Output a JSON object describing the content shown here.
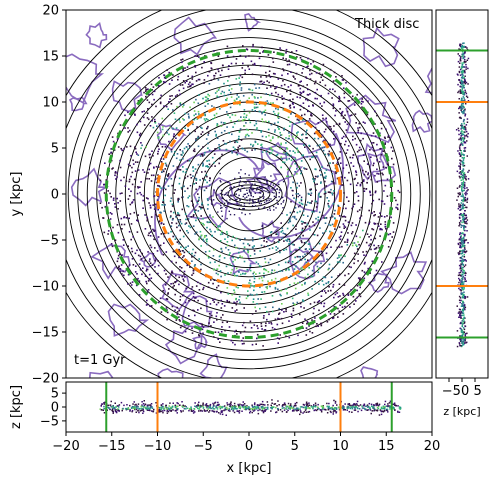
{
  "chart_data": [
    {
      "type": "scatter",
      "panel": "main-xy",
      "title": "",
      "annotation_top": "Thick disc",
      "annotation_bottom": "t=1 Gyr",
      "xlabel": "x [kpc]",
      "ylabel": "y [kpc]",
      "xlim": [
        -20,
        20
      ],
      "ylim": [
        -20,
        20
      ],
      "xticks": [
        "−20",
        "−15",
        "−10",
        "−5",
        "0",
        "5",
        "10",
        "15",
        "20"
      ],
      "yticks": [
        "20",
        "15",
        "10",
        "5",
        "0",
        "−5",
        "−10",
        "−15",
        "−20"
      ],
      "circles": [
        {
          "name": "inner",
          "radius": 10,
          "color": "#ff7f0e",
          "style": "dashed"
        },
        {
          "name": "outer",
          "radius": 15.6,
          "color": "#2ca02c",
          "style": "dashed"
        }
      ],
      "disc_extent_kpc": 16.5,
      "bar_half_length_kpc": 4,
      "potential_contour_color": "#000000",
      "gas_contour_color": "#8a6bbf"
    },
    {
      "type": "scatter",
      "panel": "side-zy",
      "xlabel": "z [kpc]",
      "xlim": [
        -10,
        10
      ],
      "ylim": [
        -20,
        20
      ],
      "xticks": [
        "−5",
        "0",
        "5"
      ],
      "hlines": [
        {
          "value": 15.6,
          "color": "#2ca02c"
        },
        {
          "value": 10,
          "color": "#ff7f0e"
        },
        {
          "value": -10,
          "color": "#ff7f0e"
        },
        {
          "value": -15.6,
          "color": "#2ca02c"
        }
      ]
    },
    {
      "type": "scatter",
      "panel": "bottom-xz",
      "ylabel": "z [kpc]",
      "xlim": [
        -20,
        20
      ],
      "ylim": [
        -9,
        9
      ],
      "yticks": [
        "5",
        "0",
        "−5"
      ],
      "vlines": [
        {
          "value": -15.6,
          "color": "#2ca02c"
        },
        {
          "value": -10,
          "color": "#ff7f0e"
        },
        {
          "value": 10,
          "color": "#ff7f0e"
        },
        {
          "value": 15.6,
          "color": "#2ca02c"
        }
      ]
    }
  ]
}
